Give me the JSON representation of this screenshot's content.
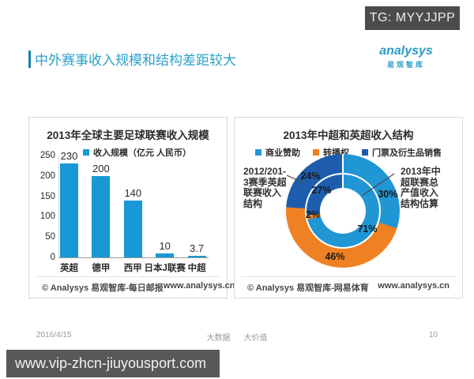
{
  "badge": {
    "text": "TG: MYYJJPP"
  },
  "header": {
    "title": "中外赛事收入规模和结构差距较大"
  },
  "logo": {
    "en": "analysys",
    "cn": "易观智库"
  },
  "watermark_text": "易观智库",
  "colors": {
    "sponsor_blue": "#2196d5",
    "broadcast_orange": "#f08122",
    "ticket_dark_blue": "#1e5dad",
    "bar_blue": "#1898d5",
    "title_blue": "#2fa0c9",
    "badge_gray": "#4c4c4c"
  },
  "chart_data": [
    {
      "type": "bar",
      "title": "2013年全球主要足球联赛收入规模",
      "legend": "收入规模（亿元 人民币）",
      "categories": [
        "英超",
        "德甲",
        "西甲",
        "日本J联赛",
        "中超"
      ],
      "values": [
        230,
        200,
        140,
        10,
        3.7
      ],
      "ylim": [
        0,
        250
      ],
      "yticks": [
        0,
        50,
        100,
        150,
        200,
        250
      ],
      "bar_color": "#1898d5",
      "grid": false,
      "legend_position": "top",
      "source_left": "© Analysys 易观智库-每日邮报",
      "source_right": "www.analysys.cn"
    },
    {
      "type": "pie",
      "subtype": "double-ring-donut",
      "title": "2013年中超和英超收入结构",
      "legend": [
        {
          "label": "商业赞助",
          "color": "#2196d5"
        },
        {
          "label": "转播权",
          "color": "#f08122"
        },
        {
          "label": "门票及衍生品销售",
          "color": "#1e5dad"
        }
      ],
      "rings": [
        {
          "name": "outer",
          "label": "2012/2013赛季英超联赛收入结构",
          "values": [
            {
              "label": "商业赞助",
              "pct": 30
            },
            {
              "label": "转播权",
              "pct": 46
            },
            {
              "label": "门票及衍生品销售",
              "pct": 24
            }
          ]
        },
        {
          "name": "inner",
          "label": "2013年中超联赛总产值收入结构估算",
          "values": [
            {
              "label": "商业赞助",
              "pct": 71
            },
            {
              "label": "转播权",
              "pct": 2
            },
            {
              "label": "门票及衍生品销售",
              "pct": 27
            }
          ]
        }
      ],
      "annotation_left_lines": [
        "2012/201-",
        "3赛季英超",
        "联赛收入",
        "结构"
      ],
      "annotation_right_lines": [
        "2013年中",
        "超联赛总",
        "产值收入",
        "结构估算"
      ],
      "source_left": "© Analysys 易观智库-网易体育",
      "source_right": "www.analysys.cn"
    }
  ],
  "footer": {
    "date": "2016/4/15",
    "slogan_left": "大数据",
    "slogan_right": "大价值",
    "page": "10"
  },
  "bottom_banner": {
    "url": "www.vip-zhcn-jiuyousport.com"
  }
}
